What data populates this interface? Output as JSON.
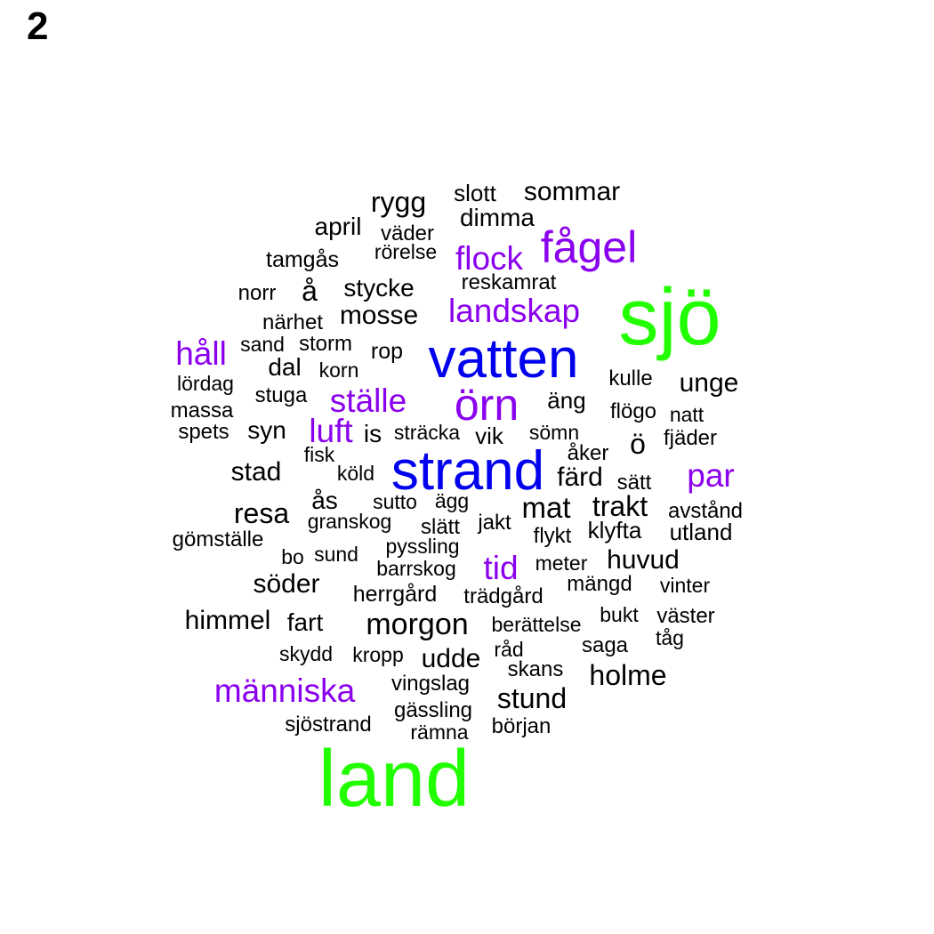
{
  "panel_label": "2",
  "chart_data": {
    "type": "wordcloud",
    "colors": {
      "large": "#22ff00",
      "medium": "#0000ee",
      "small": "#8a00ee",
      "default": "#000000"
    },
    "words": [
      {
        "text": "land",
        "size": 6,
        "color": "large"
      },
      {
        "text": "sjö",
        "size": 6,
        "color": "large"
      },
      {
        "text": "vatten",
        "size": 5,
        "color": "medium"
      },
      {
        "text": "strand",
        "size": 5,
        "color": "medium"
      },
      {
        "text": "örn",
        "size": 4,
        "color": "small"
      },
      {
        "text": "fågel",
        "size": 4,
        "color": "small"
      },
      {
        "text": "landskap",
        "size": 3,
        "color": "small"
      },
      {
        "text": "ställe",
        "size": 3,
        "color": "small"
      },
      {
        "text": "människa",
        "size": 3,
        "color": "small"
      },
      {
        "text": "flock",
        "size": 3,
        "color": "small"
      },
      {
        "text": "håll",
        "size": 3,
        "color": "small"
      },
      {
        "text": "luft",
        "size": 3,
        "color": "small"
      },
      {
        "text": "tid",
        "size": 3,
        "color": "small"
      },
      {
        "text": "par",
        "size": 3,
        "color": "small"
      },
      {
        "text": "rygg",
        "size": 2
      },
      {
        "text": "slott",
        "size": 1
      },
      {
        "text": "sommar",
        "size": 2
      },
      {
        "text": "dimma",
        "size": 1
      },
      {
        "text": "april",
        "size": 1
      },
      {
        "text": "väder",
        "size": 1
      },
      {
        "text": "rörelse",
        "size": 1
      },
      {
        "text": "tamgås",
        "size": 1
      },
      {
        "text": "norr",
        "size": 1
      },
      {
        "text": "å",
        "size": 2
      },
      {
        "text": "stycke",
        "size": 1
      },
      {
        "text": "reskamrat",
        "size": 1
      },
      {
        "text": "närhet",
        "size": 1
      },
      {
        "text": "mosse",
        "size": 2
      },
      {
        "text": "sand",
        "size": 1
      },
      {
        "text": "storm",
        "size": 1
      },
      {
        "text": "rop",
        "size": 1
      },
      {
        "text": "dal",
        "size": 2
      },
      {
        "text": "korn",
        "size": 1
      },
      {
        "text": "kulle",
        "size": 1
      },
      {
        "text": "unge",
        "size": 2
      },
      {
        "text": "lördag",
        "size": 1
      },
      {
        "text": "stuga",
        "size": 1
      },
      {
        "text": "äng",
        "size": 1
      },
      {
        "text": "massa",
        "size": 1
      },
      {
        "text": "flögo",
        "size": 1
      },
      {
        "text": "natt",
        "size": 1
      },
      {
        "text": "spets",
        "size": 1
      },
      {
        "text": "syn",
        "size": 2
      },
      {
        "text": "is",
        "size": 2
      },
      {
        "text": "sträcka",
        "size": 1
      },
      {
        "text": "vik",
        "size": 2
      },
      {
        "text": "sömn",
        "size": 1
      },
      {
        "text": "ö",
        "size": 2
      },
      {
        "text": "fjäder",
        "size": 1
      },
      {
        "text": "fisk",
        "size": 1
      },
      {
        "text": "åker",
        "size": 1
      },
      {
        "text": "stad",
        "size": 2
      },
      {
        "text": "köld",
        "size": 1
      },
      {
        "text": "färd",
        "size": 2
      },
      {
        "text": "sätt",
        "size": 1
      },
      {
        "text": "ås",
        "size": 2
      },
      {
        "text": "sutto",
        "size": 1
      },
      {
        "text": "ägg",
        "size": 1
      },
      {
        "text": "mat",
        "size": 2
      },
      {
        "text": "trakt",
        "size": 2
      },
      {
        "text": "avstånd",
        "size": 1
      },
      {
        "text": "resa",
        "size": 2
      },
      {
        "text": "granskog",
        "size": 1
      },
      {
        "text": "slätt",
        "size": 1
      },
      {
        "text": "jakt",
        "size": 1
      },
      {
        "text": "flykt",
        "size": 1
      },
      {
        "text": "klyfta",
        "size": 1
      },
      {
        "text": "utland",
        "size": 1
      },
      {
        "text": "gömställe",
        "size": 1
      },
      {
        "text": "pyssling",
        "size": 1
      },
      {
        "text": "bo",
        "size": 1
      },
      {
        "text": "sund",
        "size": 1
      },
      {
        "text": "barrskog",
        "size": 1
      },
      {
        "text": "meter",
        "size": 1
      },
      {
        "text": "huvud",
        "size": 2
      },
      {
        "text": "söder",
        "size": 2
      },
      {
        "text": "herrgård",
        "size": 1
      },
      {
        "text": "trädgård",
        "size": 1
      },
      {
        "text": "mängd",
        "size": 1
      },
      {
        "text": "vinter",
        "size": 1
      },
      {
        "text": "himmel",
        "size": 2
      },
      {
        "text": "fart",
        "size": 2
      },
      {
        "text": "morgon",
        "size": 2
      },
      {
        "text": "berättelse",
        "size": 1
      },
      {
        "text": "bukt",
        "size": 1
      },
      {
        "text": "väster",
        "size": 1
      },
      {
        "text": "tåg",
        "size": 1
      },
      {
        "text": "skydd",
        "size": 1
      },
      {
        "text": "kropp",
        "size": 1
      },
      {
        "text": "udde",
        "size": 2
      },
      {
        "text": "råd",
        "size": 1
      },
      {
        "text": "saga",
        "size": 1
      },
      {
        "text": "skans",
        "size": 1
      },
      {
        "text": "holme",
        "size": 2
      },
      {
        "text": "vingslag",
        "size": 1
      },
      {
        "text": "stund",
        "size": 2
      },
      {
        "text": "gässling",
        "size": 1
      },
      {
        "text": "sjöstrand",
        "size": 1
      },
      {
        "text": "rämna",
        "size": 1
      },
      {
        "text": "början",
        "size": 1
      }
    ]
  }
}
